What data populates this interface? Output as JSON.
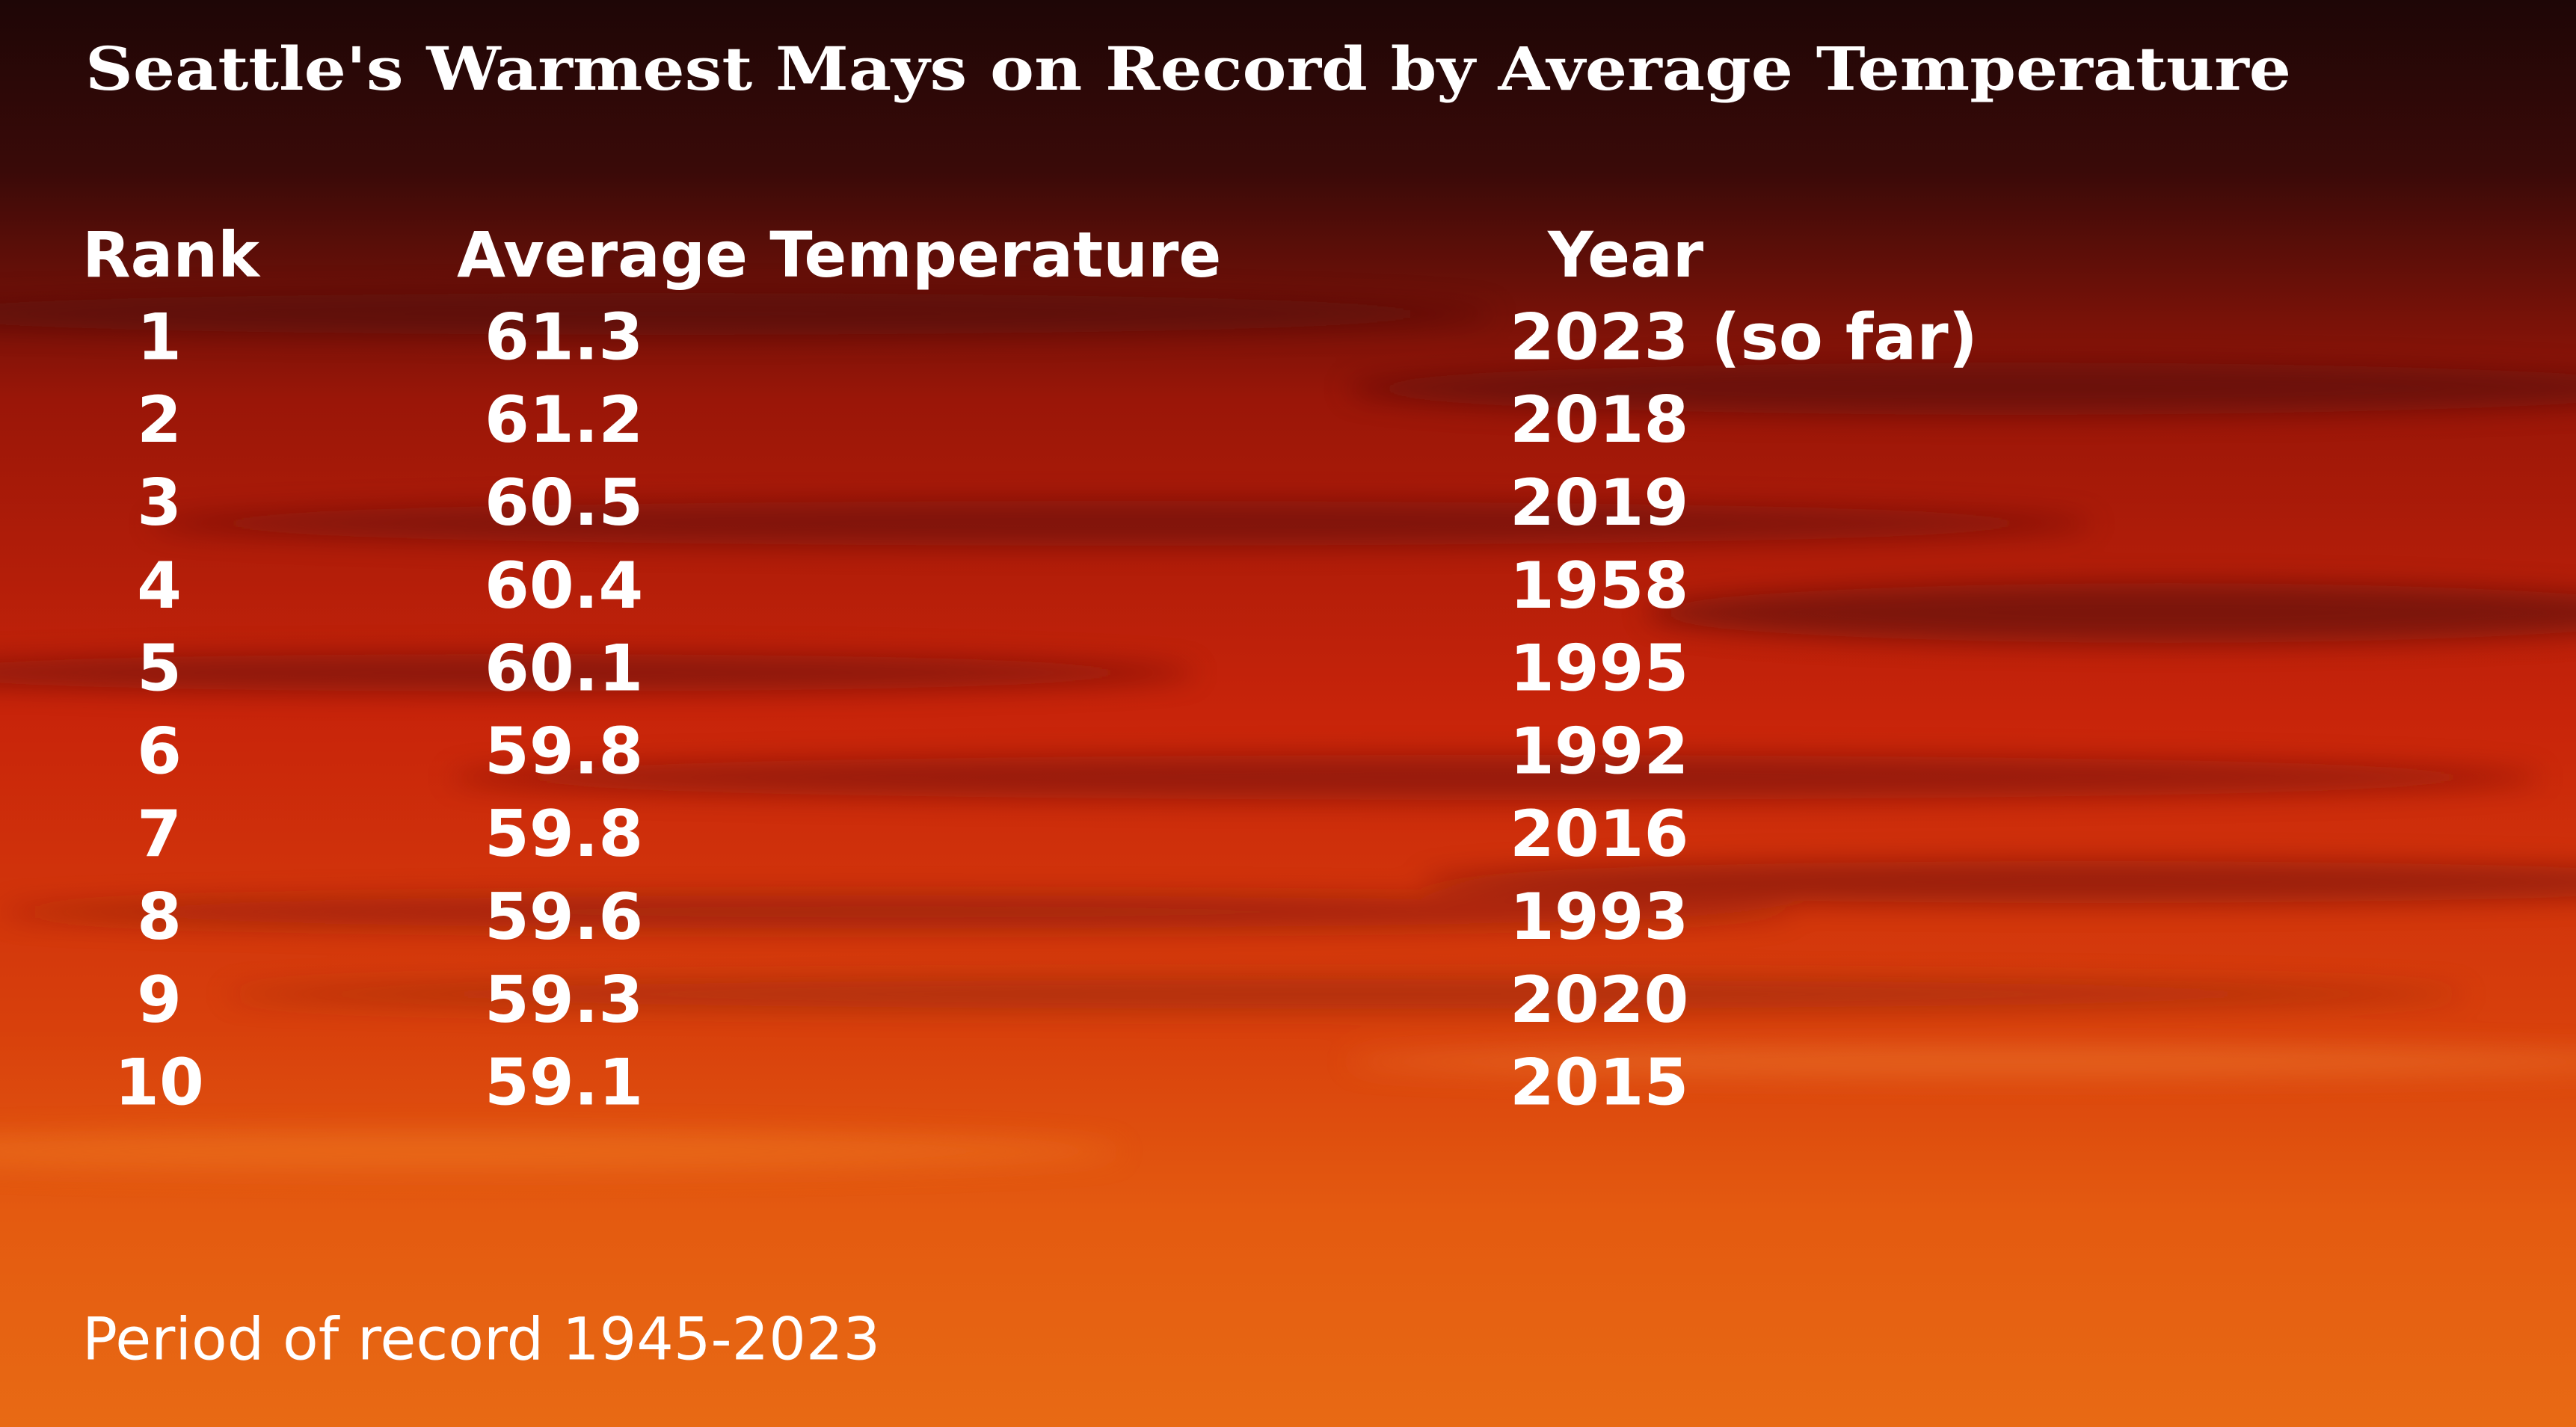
{
  "header": {
    "title": "Seattle's Warmest Mays on Record by Average Temperature"
  },
  "table": {
    "columns": [
      "Rank",
      "Average Temperature",
      "Year"
    ],
    "rows": [
      [
        1,
        61.3,
        "2023 (so far)"
      ],
      [
        2,
        61.2,
        2018
      ],
      [
        3,
        60.5,
        2019
      ],
      [
        4,
        60.4,
        1958
      ],
      [
        5,
        60.1,
        1995
      ],
      [
        6,
        59.8,
        1992
      ],
      [
        7,
        59.8,
        2016
      ],
      [
        8,
        59.6,
        1993
      ],
      [
        9,
        59.3,
        2020
      ],
      [
        10,
        59.1,
        2015
      ]
    ]
  },
  "footer": {
    "note": "Period of record 1945-2023"
  }
}
